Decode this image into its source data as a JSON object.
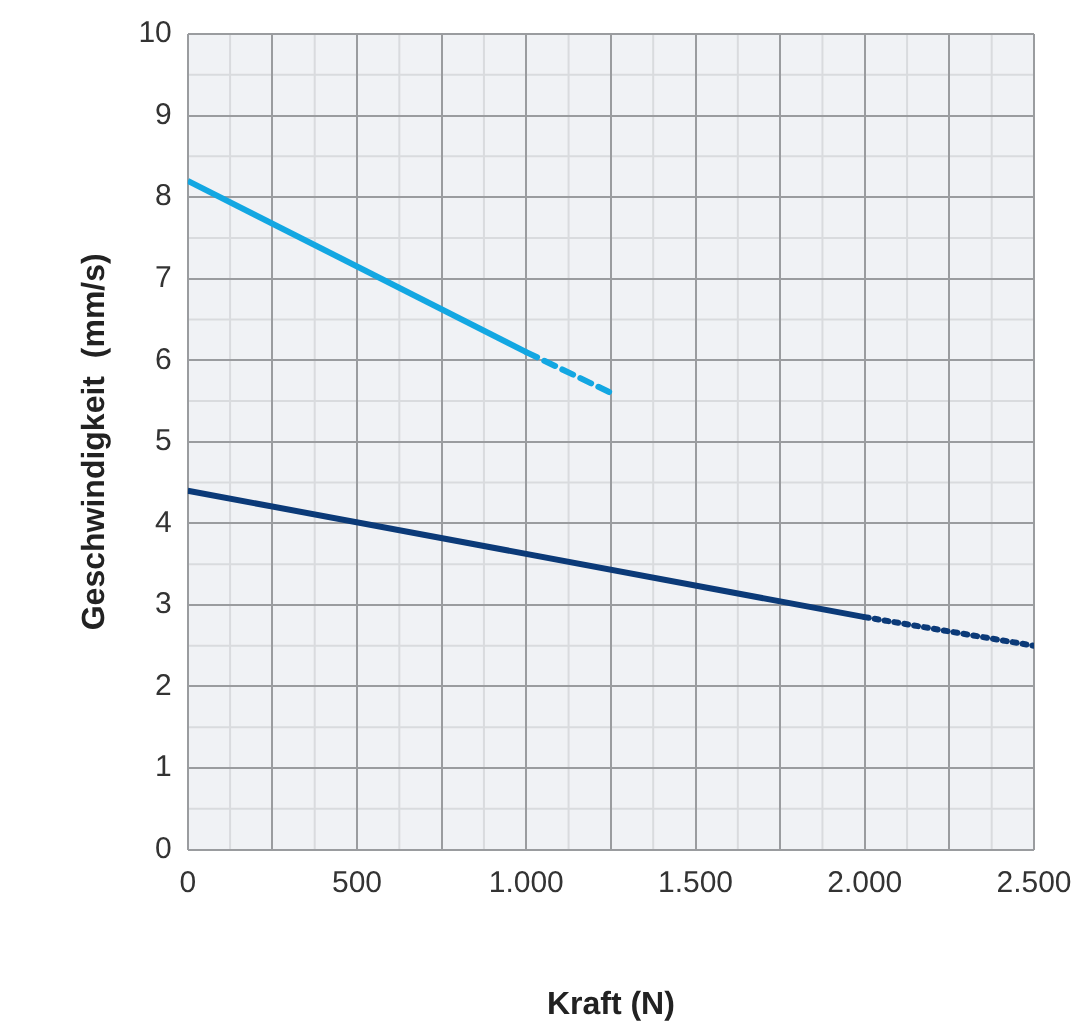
{
  "chart_data": {
    "type": "line",
    "xlabel": "Kraft (N)",
    "ylabel": "Geschwindigkeit  (mm/s)",
    "xlim": [
      0,
      2500
    ],
    "ylim": [
      0,
      10
    ],
    "xticks": [
      0,
      {
        "value": 250,
        "label": null
      },
      500,
      {
        "value": 750,
        "label": null
      },
      {
        "value": 1000,
        "label": "1.000"
      },
      {
        "value": 1250,
        "label": null
      },
      {
        "value": 1500,
        "label": "1.500"
      },
      {
        "value": 1750,
        "label": null
      },
      {
        "value": 2000,
        "label": "2.000"
      },
      {
        "value": 2250,
        "label": null
      },
      {
        "value": 2500,
        "label": "2.500"
      }
    ],
    "yticks": [
      0,
      1,
      2,
      3,
      4,
      5,
      6,
      7,
      8,
      9,
      10
    ],
    "grid": true,
    "legend": false,
    "marker": "none",
    "series": [
      {
        "color": "#13a7e2",
        "x": [
          0,
          1000
        ],
        "values": [
          8.2,
          6.1
        ],
        "line_style": "solid"
      },
      {
        "color": "#13a7e2",
        "x": [
          1000,
          1250
        ],
        "values": [
          6.1,
          5.6
        ],
        "line_style": "dashed"
      },
      {
        "color": "#0b3a78",
        "x": [
          0,
          2000
        ],
        "values": [
          4.4,
          2.85
        ],
        "line_style": "solid"
      },
      {
        "color": "#0b3a78",
        "x": [
          2000,
          2500
        ],
        "values": [
          2.85,
          2.5
        ],
        "line_style": "dotted"
      }
    ]
  }
}
